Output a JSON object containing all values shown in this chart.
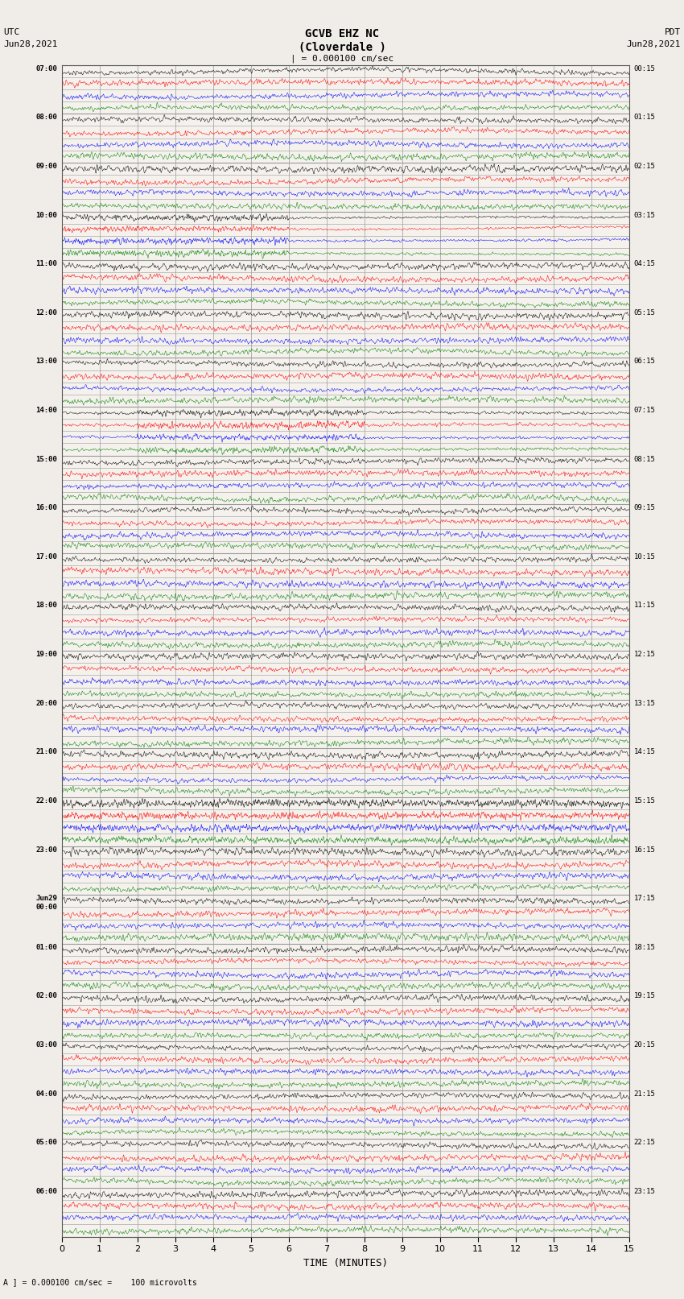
{
  "title_line1": "GCVB EHZ NC",
  "title_line2": "(Cloverdale )",
  "scale_label": "| = 0.000100 cm/sec",
  "utc_label": "UTC\nJun28,2021",
  "pdt_label": "PDT\nJun28,2021",
  "xlabel": "TIME (MINUTES)",
  "footnote": "A ] = 0.000100 cm/sec =    100 microvolts",
  "left_times": [
    "07:00",
    "",
    "",
    "",
    "08:00",
    "",
    "",
    "",
    "09:00",
    "",
    "",
    "",
    "10:00",
    "",
    "",
    "",
    "11:00",
    "",
    "",
    "",
    "12:00",
    "",
    "",
    "",
    "13:00",
    "",
    "",
    "",
    "14:00",
    "",
    "",
    "",
    "15:00",
    "",
    "",
    "",
    "16:00",
    "",
    "",
    "",
    "17:00",
    "",
    "",
    "",
    "18:00",
    "",
    "",
    "",
    "19:00",
    "",
    "",
    "",
    "20:00",
    "",
    "",
    "",
    "21:00",
    "",
    "",
    "",
    "22:00",
    "",
    "",
    "",
    "23:00",
    "",
    "",
    "",
    "Jun29\n00:00",
    "",
    "",
    "",
    "01:00",
    "",
    "",
    "",
    "02:00",
    "",
    "",
    "",
    "03:00",
    "",
    "",
    "",
    "04:00",
    "",
    "",
    "",
    "05:00",
    "",
    "",
    "",
    "06:00",
    "",
    "",
    ""
  ],
  "right_times": [
    "00:15",
    "",
    "",
    "",
    "01:15",
    "",
    "",
    "",
    "02:15",
    "",
    "",
    "",
    "03:15",
    "",
    "",
    "",
    "04:15",
    "",
    "",
    "",
    "05:15",
    "",
    "",
    "",
    "06:15",
    "",
    "",
    "",
    "07:15",
    "",
    "",
    "",
    "08:15",
    "",
    "",
    "",
    "09:15",
    "",
    "",
    "",
    "10:15",
    "",
    "",
    "",
    "11:15",
    "",
    "",
    "",
    "12:15",
    "",
    "",
    "",
    "13:15",
    "",
    "",
    "",
    "14:15",
    "",
    "",
    "",
    "15:15",
    "",
    "",
    "",
    "16:15",
    "",
    "",
    "",
    "17:15",
    "",
    "",
    "",
    "18:15",
    "",
    "",
    "",
    "19:15",
    "",
    "",
    "",
    "20:15",
    "",
    "",
    "",
    "21:15",
    "",
    "",
    "",
    "22:15",
    "",
    "",
    "",
    "23:15",
    "",
    "",
    ""
  ],
  "n_rows": 96,
  "colors_cycle": [
    "black",
    "red",
    "blue",
    "green"
  ],
  "bg_color": "#f0ede8",
  "plot_bg_color": "#f5f2ee",
  "grid_color": "#999999",
  "noise_amplitude": 0.12,
  "n_points": 1800,
  "x_min": 0,
  "x_max": 15,
  "x_ticks": [
    0,
    1,
    2,
    3,
    4,
    5,
    6,
    7,
    8,
    9,
    10,
    11,
    12,
    13,
    14,
    15
  ]
}
